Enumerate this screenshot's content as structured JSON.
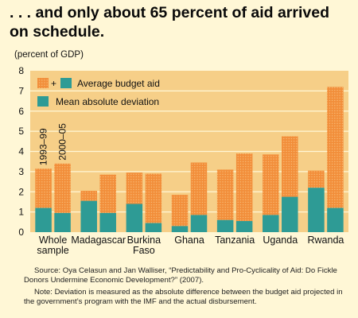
{
  "title": ". . . and only about 65 percent of aid arrived on schedule.",
  "unit_label": "(percent of GDP)",
  "chart_data": {
    "type": "bar",
    "stacked": true,
    "ylim": [
      0,
      8
    ],
    "yticks": [
      0,
      1,
      2,
      3,
      4,
      5,
      6,
      7,
      8
    ],
    "period_labels": [
      "1993–99",
      "2000–05"
    ],
    "categories": [
      {
        "label": [
          "Whole",
          "sample"
        ],
        "values": [
          {
            "total": 3.15,
            "deviation": 1.2
          },
          {
            "total": 3.4,
            "deviation": 0.95
          }
        ]
      },
      {
        "label": [
          "Madagascar"
        ],
        "values": [
          {
            "total": 2.05,
            "deviation": 1.55
          },
          {
            "total": 2.85,
            "deviation": 0.95
          }
        ]
      },
      {
        "label": [
          "Burkina",
          "Faso"
        ],
        "values": [
          {
            "total": 2.95,
            "deviation": 1.4
          },
          {
            "total": 2.9,
            "deviation": 0.45
          }
        ]
      },
      {
        "label": [
          "Ghana"
        ],
        "values": [
          {
            "total": 1.85,
            "deviation": 0.3
          },
          {
            "total": 3.45,
            "deviation": 0.85
          }
        ]
      },
      {
        "label": [
          "Tanzania"
        ],
        "values": [
          {
            "total": 3.1,
            "deviation": 0.6
          },
          {
            "total": 3.9,
            "deviation": 0.55
          }
        ]
      },
      {
        "label": [
          "Uganda"
        ],
        "values": [
          {
            "total": 3.85,
            "deviation": 0.85
          },
          {
            "total": 4.75,
            "deviation": 1.75
          }
        ]
      },
      {
        "label": [
          "Rwanda"
        ],
        "values": [
          {
            "total": 3.05,
            "deviation": 2.2
          },
          {
            "total": 7.2,
            "deviation": 1.2
          }
        ]
      }
    ],
    "legend": {
      "entry1_plus": "+",
      "entry1": "Average budget aid",
      "entry2": "Mean absolute deviation",
      "placement": "top-left"
    },
    "colors": {
      "deviation": "#2e9b95",
      "budget": "#f28e3a",
      "budget_dots": "#f9c07d",
      "plot_bg": "#f6cf88",
      "gridline": "#fff7d6"
    }
  },
  "source": "Source: Oya Celasun and Jan Walliser, “Predictability and Pro-Cyclicality of Aid: Do Fickle Donors Undermine Economic Development?” (2007).",
  "note": "Note: Deviation is measured as the absolute difference between the budget aid projected in the government’s program with the IMF and the actual disbursement."
}
